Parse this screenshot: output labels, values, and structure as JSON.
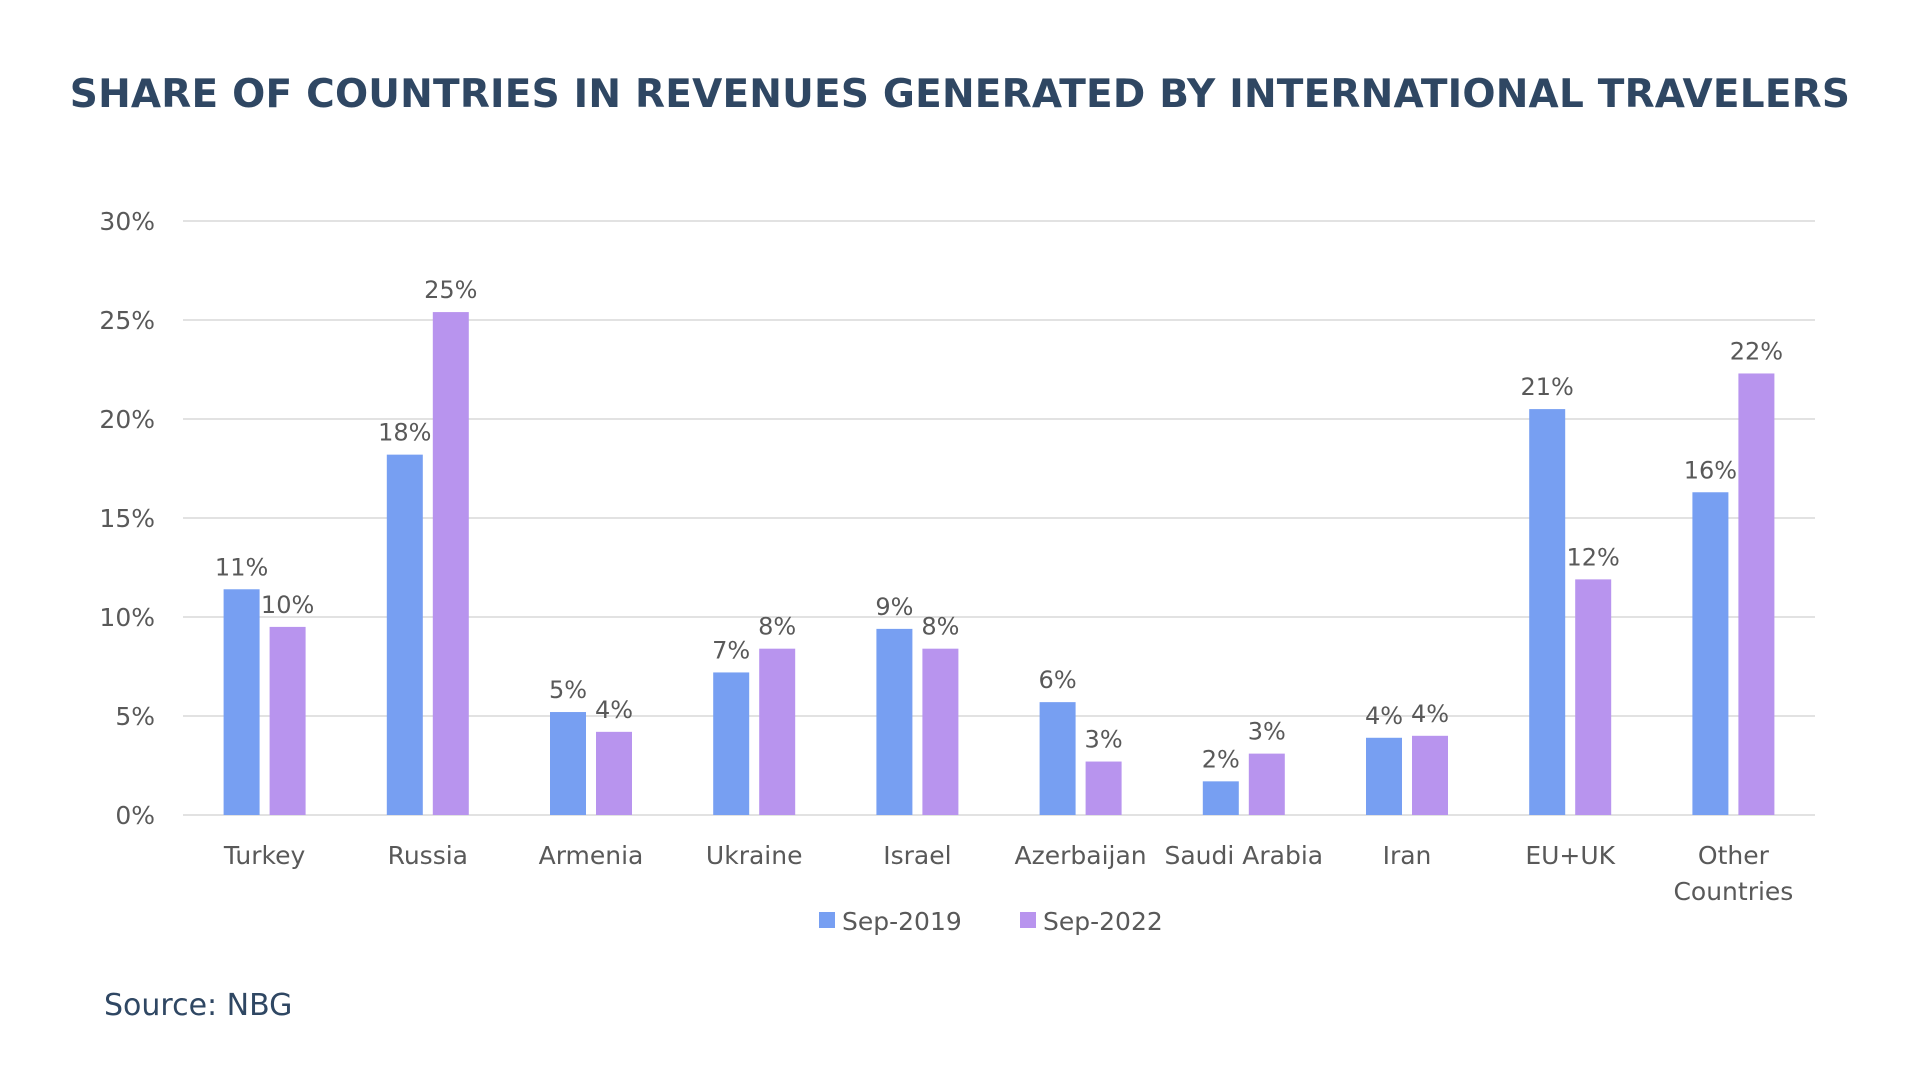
{
  "chart_data": {
    "type": "bar",
    "title": "SHARE OF COUNTRIES IN REVENUES GENERATED BY INTERNATIONAL TRAVELERS",
    "xlabel": "",
    "ylabel": "",
    "ylim": [
      0,
      30
    ],
    "yticks": [
      0,
      5,
      10,
      15,
      20,
      25,
      30
    ],
    "ytick_labels": [
      "0%",
      "5%",
      "10%",
      "15%",
      "20%",
      "25%",
      "30%"
    ],
    "grid": true,
    "legend_position": "bottom",
    "categories": [
      [
        "Turkey"
      ],
      [
        "Russia"
      ],
      [
        "Armenia"
      ],
      [
        "Ukraine"
      ],
      [
        "Israel"
      ],
      [
        "Azerbaijan"
      ],
      [
        "Saudi Arabia"
      ],
      [
        "Iran"
      ],
      [
        "EU+UK"
      ],
      [
        "Other",
        "Countries"
      ]
    ],
    "series": [
      {
        "name": "Sep-2019",
        "color": "#779ff2",
        "values": [
          11.4,
          18.2,
          5.2,
          7.2,
          9.4,
          5.7,
          1.7,
          3.9,
          20.5,
          16.3
        ],
        "labels": [
          "11%",
          "18%",
          "5%",
          "7%",
          "9%",
          "6%",
          "2%",
          "4%",
          "21%",
          "16%"
        ]
      },
      {
        "name": "Sep-2022",
        "color": "#b894ee",
        "values": [
          9.5,
          25.4,
          4.2,
          8.4,
          8.4,
          2.7,
          3.1,
          4.0,
          11.9,
          22.3
        ],
        "labels": [
          "10%",
          "25%",
          "4%",
          "8%",
          "8%",
          "3%",
          "3%",
          "4%",
          "12%",
          "22%"
        ]
      }
    ]
  },
  "footer": {
    "source": "Source: NBG"
  },
  "colors": {
    "title": "#2f4763",
    "grid": "#d9d9d9",
    "axis_text": "#595959"
  }
}
